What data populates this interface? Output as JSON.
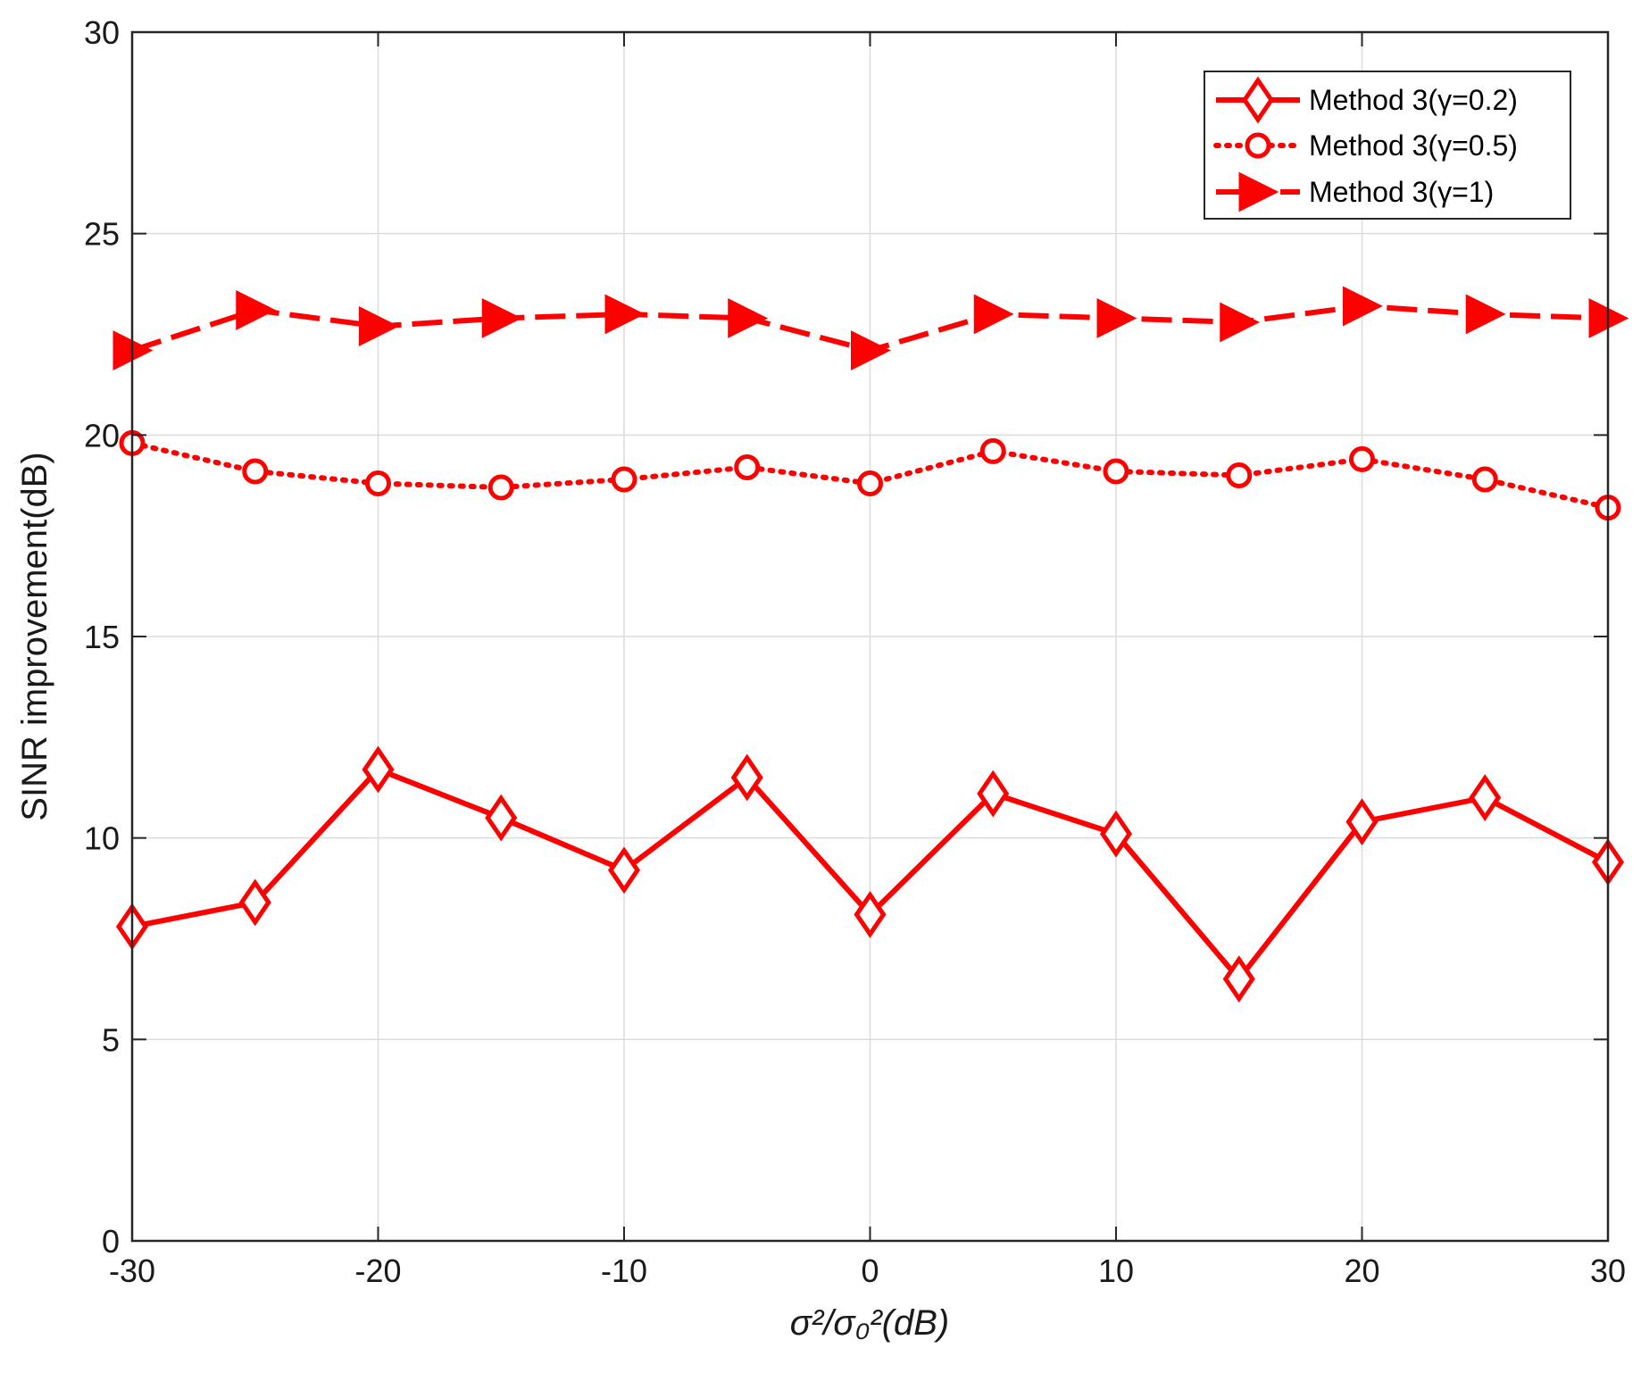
{
  "chart_data": {
    "type": "line",
    "title": "",
    "xlabel": "σ²/σ₀²(dB)",
    "ylabel": "SINR improvement(dB)",
    "xlim": [
      -30,
      30
    ],
    "ylim": [
      0,
      30
    ],
    "x_ticks": [
      -30,
      -20,
      -10,
      0,
      10,
      20,
      30
    ],
    "y_ticks": [
      0,
      5,
      10,
      15,
      20,
      25,
      30
    ],
    "grid": true,
    "legend_position": "top-right",
    "x": [
      -30,
      -25,
      -20,
      -15,
      -10,
      -5,
      0,
      5,
      10,
      15,
      20,
      25,
      30
    ],
    "series": [
      {
        "name": "Method 3(γ=0.2)",
        "style": "solid",
        "marker": "diamond",
        "color": "#ff0000",
        "values": [
          7.8,
          8.4,
          11.7,
          10.5,
          9.2,
          11.5,
          8.1,
          11.1,
          10.1,
          6.5,
          10.4,
          11.0,
          9.4
        ]
      },
      {
        "name": "Method 3(γ=0.5)",
        "style": "dotted",
        "marker": "circle",
        "color": "#ff0000",
        "values": [
          19.8,
          19.1,
          18.8,
          18.7,
          18.9,
          19.2,
          18.8,
          19.6,
          19.1,
          19.0,
          19.4,
          18.9,
          18.2
        ]
      },
      {
        "name": "Method 3(γ=1)",
        "style": "dashed",
        "marker": "triangle-right",
        "color": "#ff0000",
        "values": [
          22.1,
          23.1,
          22.7,
          22.9,
          23.0,
          22.9,
          22.1,
          23.0,
          22.9,
          22.8,
          23.2,
          23.0,
          22.9
        ]
      }
    ]
  }
}
